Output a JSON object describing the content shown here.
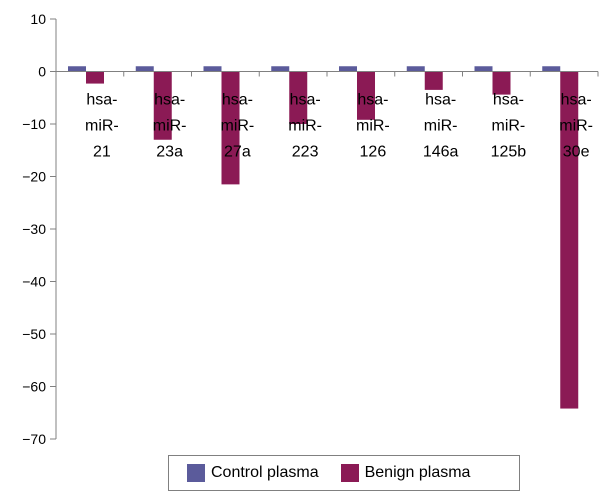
{
  "chart_data": {
    "type": "bar",
    "categories": [
      [
        "hsa-",
        "miR-",
        "21"
      ],
      [
        "hsa-",
        "miR-",
        "23a"
      ],
      [
        "hsa-",
        "miR-",
        "27a"
      ],
      [
        "hsa-",
        "miR-",
        "223"
      ],
      [
        "hsa-",
        "miR-",
        "126"
      ],
      [
        "hsa-",
        "miR-",
        "146a"
      ],
      [
        "hsa-",
        "miR-",
        "125b"
      ],
      [
        "hsa-",
        "miR-",
        "30e"
      ]
    ],
    "series": [
      {
        "name": "Control plasma",
        "color": "#5b5b9b",
        "values": [
          1,
          1,
          1,
          1,
          1,
          1,
          1,
          1
        ]
      },
      {
        "name": "Benign plasma",
        "color": "#8b1a55",
        "values": [
          -2.3,
          -13,
          -21.5,
          -10,
          -9.2,
          -3.5,
          -4.4,
          -64.2
        ]
      }
    ],
    "ylim": [
      -70,
      10
    ],
    "yticks": [
      10,
      0,
      -10,
      -20,
      -30,
      -40,
      -50,
      -60,
      -70
    ],
    "grid": false,
    "legend_position": "bottom",
    "title": "",
    "xlabel": "",
    "ylabel": ""
  }
}
